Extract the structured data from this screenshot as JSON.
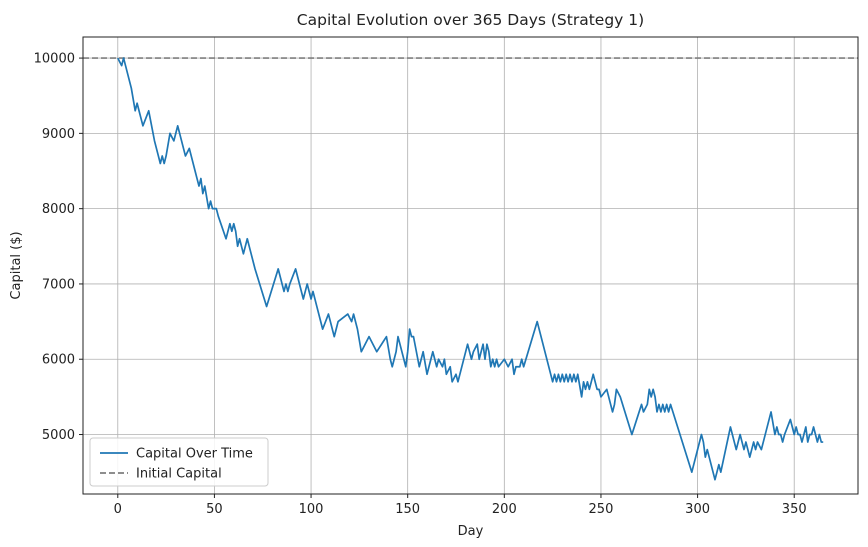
{
  "chart_data": {
    "type": "line",
    "title": "Capital Evolution over 365 Days (Strategy 1)",
    "xlabel": "Day",
    "ylabel": "Capital ($)",
    "xlim": [
      -18,
      383
    ],
    "ylim": [
      4210,
      10280
    ],
    "xticks": [
      0,
      50,
      100,
      150,
      200,
      250,
      300,
      350
    ],
    "yticks": [
      5000,
      6000,
      7000,
      8000,
      9000,
      10000
    ],
    "grid": true,
    "legend_position": "lower-left",
    "colors": {
      "capital": "#1f77b4",
      "initial": "#7f7f7f"
    },
    "series": [
      {
        "name": "Capital Over Time",
        "style": "solid",
        "x": [
          0,
          2,
          3,
          7,
          9,
          10,
          13,
          16,
          19,
          21,
          22,
          23,
          24,
          25,
          27,
          29,
          30,
          31,
          35,
          37,
          38,
          40,
          41,
          42,
          43,
          44,
          45,
          47,
          48,
          49,
          51,
          52,
          56,
          58,
          59,
          60,
          61,
          62,
          63,
          65,
          67,
          68,
          71,
          77,
          83,
          86,
          87,
          88,
          89,
          92,
          96,
          97,
          98,
          100,
          101,
          103,
          106,
          109,
          111,
          112,
          113,
          114,
          119,
          121,
          122,
          124,
          126,
          130,
          134,
          139,
          141,
          142,
          143,
          144,
          145,
          146,
          149,
          150,
          151,
          152,
          153,
          156,
          158,
          160,
          162,
          163,
          165,
          166,
          168,
          169,
          170,
          172,
          173,
          175,
          176,
          181,
          183,
          184,
          186,
          187,
          189,
          190,
          191,
          192,
          193,
          194,
          195,
          196,
          197,
          200,
          202,
          204,
          205,
          206,
          208,
          209,
          210,
          217,
          225,
          226,
          227,
          228,
          229,
          230,
          231,
          232,
          233,
          234,
          235,
          236,
          237,
          238,
          240,
          241,
          242,
          243,
          244,
          246,
          248,
          249,
          250,
          253,
          256,
          257,
          258,
          260,
          266,
          271,
          272,
          274,
          275,
          276,
          277,
          278,
          279,
          280,
          281,
          282,
          283,
          284,
          285,
          286,
          297,
          302,
          303,
          304,
          305,
          309,
          310,
          311,
          312,
          317,
          320,
          321,
          322,
          323,
          324,
          325,
          326,
          327,
          328,
          329,
          330,
          331,
          333,
          338,
          340,
          341,
          342,
          343,
          344,
          345,
          348,
          349,
          350,
          351,
          352,
          353,
          354,
          355,
          356,
          357,
          358,
          359,
          360,
          361,
          362,
          363,
          364,
          365
        ],
        "y": [
          10000,
          9900,
          10000,
          9600,
          9300,
          9400,
          9100,
          9300,
          8900,
          8700,
          8600,
          8700,
          8600,
          8700,
          9000,
          8900,
          9000,
          9100,
          8700,
          8800,
          8700,
          8500,
          8400,
          8300,
          8400,
          8200,
          8300,
          8000,
          8100,
          8000,
          8000,
          7900,
          7600,
          7800,
          7700,
          7800,
          7700,
          7500,
          7600,
          7400,
          7600,
          7500,
          7200,
          6700,
          7200,
          6900,
          7000,
          6900,
          7000,
          7200,
          6800,
          6900,
          7000,
          6800,
          6900,
          6700,
          6400,
          6600,
          6400,
          6300,
          6400,
          6500,
          6600,
          6500,
          6600,
          6400,
          6100,
          6300,
          6100,
          6300,
          6000,
          5900,
          6000,
          6100,
          6300,
          6200,
          5900,
          6100,
          6400,
          6300,
          6300,
          5900,
          6100,
          5800,
          6000,
          6100,
          5900,
          6000,
          5900,
          6000,
          5800,
          5900,
          5700,
          5800,
          5700,
          6200,
          6000,
          6100,
          6200,
          6000,
          6200,
          6000,
          6200,
          6100,
          5900,
          6000,
          5900,
          6000,
          5900,
          6000,
          5900,
          6000,
          5800,
          5900,
          5900,
          6000,
          5900,
          6500,
          5700,
          5800,
          5700,
          5800,
          5700,
          5800,
          5700,
          5800,
          5700,
          5800,
          5700,
          5800,
          5700,
          5800,
          5500,
          5700,
          5600,
          5700,
          5600,
          5800,
          5600,
          5600,
          5500,
          5600,
          5300,
          5400,
          5600,
          5500,
          5000,
          5400,
          5300,
          5400,
          5600,
          5500,
          5600,
          5500,
          5300,
          5400,
          5300,
          5400,
          5300,
          5400,
          5300,
          5400,
          4500,
          5000,
          4900,
          4700,
          4800,
          4400,
          4500,
          4600,
          4500,
          5100,
          4800,
          4900,
          5000,
          4900,
          4800,
          4900,
          4800,
          4700,
          4800,
          4900,
          4800,
          4900,
          4800,
          5300,
          5000,
          5100,
          5000,
          5000,
          4900,
          5000,
          5200,
          5100,
          5000,
          5100,
          5000,
          5000,
          4900,
          5000,
          5100,
          4900,
          5000,
          5000,
          5100,
          5000,
          4900,
          5000,
          4900,
          4900
        ],
        "color": "#1f77b4"
      },
      {
        "name": "Initial Capital",
        "style": "dashed",
        "y_constant": 10000,
        "color": "#7f7f7f"
      }
    ]
  }
}
